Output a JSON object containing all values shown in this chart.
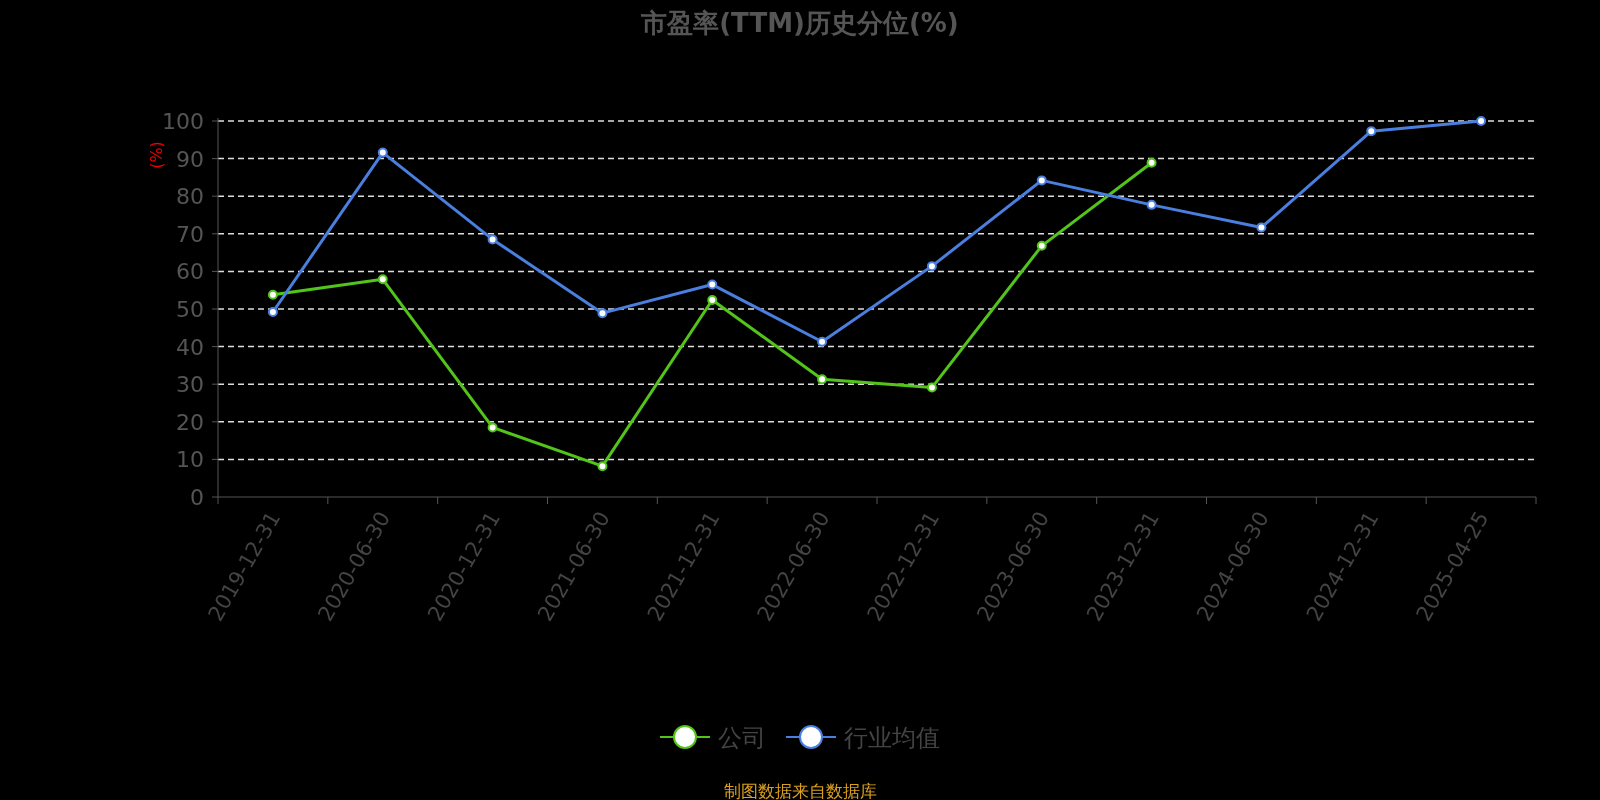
{
  "chart_data": {
    "type": "line",
    "title": "市盈率(TTM)历史分位(%)",
    "ylabel": "(%)",
    "annotations": [
      "制图数据来自数据库"
    ],
    "categories": [
      "2019-12-31",
      "2020-06-30",
      "2020-12-31",
      "2021-06-30",
      "2021-12-31",
      "2022-06-30",
      "2022-12-31",
      "2023-06-30",
      "2023-12-31",
      "2024-06-30",
      "2024-12-31",
      "2025-04-25"
    ],
    "series": [
      {
        "name": "公司",
        "color": "#52c41a",
        "values": [
          53.8,
          57.9,
          18.5,
          8.2,
          52.4,
          31.3,
          29.1,
          66.8,
          88.9,
          null,
          null,
          null
        ]
      },
      {
        "name": "行业均值",
        "color": "#4a7fe0",
        "values": [
          49.2,
          91.6,
          68.5,
          48.9,
          56.5,
          41.3,
          61.4,
          84.2,
          77.7,
          71.7,
          97.3,
          100
        ]
      }
    ],
    "ylim": [
      0,
      100
    ],
    "yticks": [
      0,
      10,
      20,
      30,
      40,
      50,
      60,
      70,
      80,
      90,
      100
    ],
    "grid": "y",
    "legend": "bottom",
    "marker": "circle",
    "line_style": "solid"
  }
}
